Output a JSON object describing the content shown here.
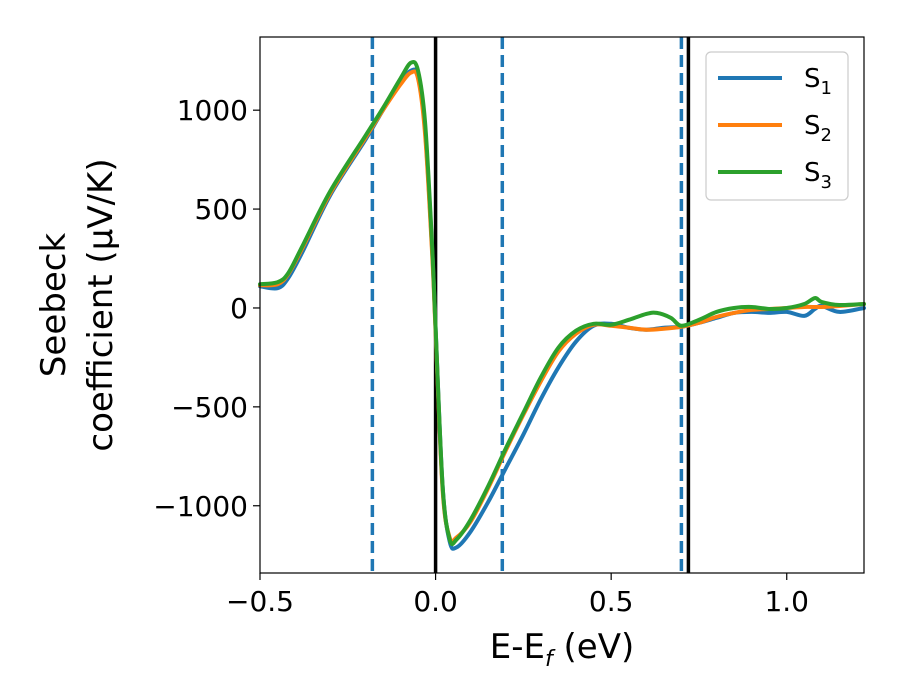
{
  "chart_data": {
    "type": "line",
    "xlabel": "E-E",
    "xlabel_sub": "f",
    "xlabel_unit": " (eV)",
    "ylabel_line1": "Seebeck",
    "ylabel_line2": "coefficient  (μV/K)",
    "xlim": [
      -0.5,
      1.22
    ],
    "ylim": [
      -1340,
      1370
    ],
    "xticks": [
      -0.5,
      0.0,
      0.5,
      1.0
    ],
    "xtick_labels": [
      "−0.5",
      "0.0",
      "0.5",
      "1.0"
    ],
    "yticks": [
      -1000,
      -500,
      0,
      500,
      1000
    ],
    "ytick_labels": [
      "−1000",
      "−500",
      "0",
      "500",
      "1000"
    ],
    "grid": false,
    "legend_position": "top-right",
    "vlines": [
      {
        "x": -0.18,
        "style": "dashed",
        "color": "#1f77b4"
      },
      {
        "x": 0.0,
        "style": "solid",
        "color": "#000000"
      },
      {
        "x": 0.19,
        "style": "dashed",
        "color": "#1f77b4"
      },
      {
        "x": 0.7,
        "style": "dashed",
        "color": "#1f77b4"
      },
      {
        "x": 0.72,
        "style": "solid",
        "color": "#000000"
      }
    ],
    "series": [
      {
        "name": "S",
        "sub": "1",
        "color": "#1f77b4",
        "x": [
          -0.5,
          -0.45,
          -0.42,
          -0.38,
          -0.3,
          -0.2,
          -0.15,
          -0.1,
          -0.07,
          -0.05,
          -0.03,
          -0.01,
          0.0,
          0.02,
          0.04,
          0.06,
          0.1,
          0.15,
          0.2,
          0.25,
          0.3,
          0.35,
          0.4,
          0.45,
          0.5,
          0.55,
          0.6,
          0.65,
          0.7,
          0.75,
          0.8,
          0.85,
          0.9,
          0.95,
          1.0,
          1.05,
          1.08,
          1.1,
          1.15,
          1.22
        ],
        "y": [
          110,
          100,
          150,
          280,
          570,
          850,
          1000,
          1140,
          1200,
          1170,
          900,
          300,
          -100,
          -900,
          -1180,
          -1210,
          -1130,
          -980,
          -810,
          -640,
          -460,
          -300,
          -170,
          -90,
          -80,
          -100,
          -110,
          -100,
          -95,
          -75,
          -50,
          -25,
          -20,
          -25,
          -20,
          -40,
          -5,
          10,
          -20,
          0
        ]
      },
      {
        "name": "S",
        "sub": "2",
        "color": "#ff7f0e",
        "x": [
          -0.5,
          -0.45,
          -0.42,
          -0.38,
          -0.3,
          -0.2,
          -0.15,
          -0.1,
          -0.07,
          -0.05,
          -0.03,
          -0.01,
          0.0,
          0.02,
          0.04,
          0.06,
          0.1,
          0.15,
          0.2,
          0.25,
          0.3,
          0.35,
          0.4,
          0.45,
          0.5,
          0.55,
          0.6,
          0.65,
          0.7,
          0.75,
          0.8,
          0.85,
          0.9,
          0.95,
          1.0,
          1.05,
          1.1,
          1.15,
          1.22
        ],
        "y": [
          115,
          120,
          170,
          300,
          580,
          860,
          1000,
          1130,
          1190,
          1160,
          880,
          280,
          -120,
          -920,
          -1160,
          -1160,
          -1080,
          -910,
          -720,
          -540,
          -370,
          -220,
          -130,
          -85,
          -90,
          -100,
          -110,
          -105,
          -95,
          -75,
          -45,
          -25,
          -10,
          -5,
          0,
          5,
          5,
          10,
          20
        ]
      },
      {
        "name": "S",
        "sub": "3",
        "color": "#2ca02c",
        "x": [
          -0.5,
          -0.45,
          -0.42,
          -0.38,
          -0.3,
          -0.2,
          -0.15,
          -0.1,
          -0.07,
          -0.05,
          -0.03,
          -0.01,
          0.0,
          0.02,
          0.04,
          0.06,
          0.1,
          0.15,
          0.2,
          0.25,
          0.3,
          0.35,
          0.4,
          0.45,
          0.5,
          0.55,
          0.6,
          0.63,
          0.67,
          0.7,
          0.75,
          0.8,
          0.85,
          0.9,
          0.95,
          1.0,
          1.05,
          1.08,
          1.1,
          1.15,
          1.22
        ],
        "y": [
          120,
          130,
          175,
          310,
          590,
          870,
          1010,
          1160,
          1240,
          1200,
          940,
          320,
          -100,
          -900,
          -1170,
          -1170,
          -1070,
          -900,
          -710,
          -530,
          -350,
          -200,
          -115,
          -80,
          -85,
          -60,
          -30,
          -25,
          -50,
          -90,
          -60,
          -20,
          0,
          5,
          -5,
          0,
          20,
          50,
          30,
          15,
          20
        ]
      }
    ]
  }
}
